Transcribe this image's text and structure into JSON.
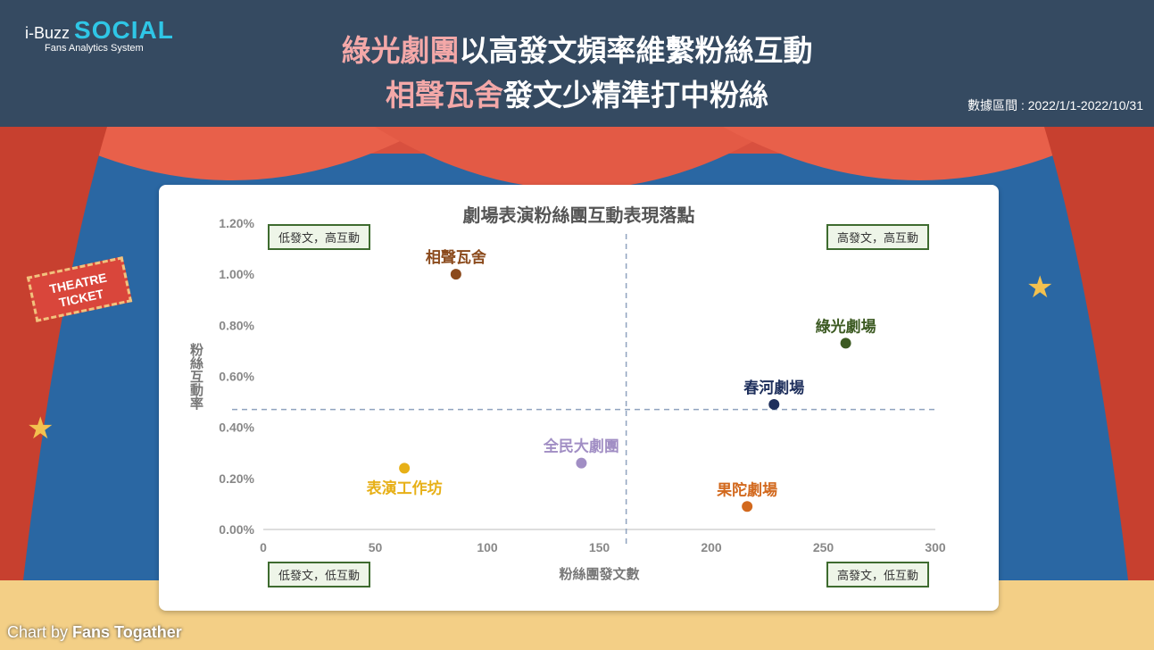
{
  "header": {
    "logo_text": "i-Buzz",
    "logo_brand": "SOCIAL",
    "logo_sub": "Fans Analytics System",
    "title_line1_highlight": "綠光劇團",
    "title_line1_rest": "以高發文頻率維繫粉絲互動",
    "title_line2_highlight": "相聲瓦舍",
    "title_line2_rest": "發文少精準打中粉絲",
    "period": "數據區間 : 2022/1/1-2022/10/31"
  },
  "decor": {
    "ticket_text": "THEATRE TICKET"
  },
  "quadrants": {
    "top_left": "低發文，高互動",
    "top_right": "高發文，高互動",
    "bottom_left": "低發文，低互動",
    "bottom_right": "高發文，低互動"
  },
  "footer": {
    "credit_prefix": "Chart by",
    "credit_name": "Fans Togather"
  },
  "chart_data": {
    "type": "scatter",
    "title": "劇場表演粉絲團互動表現落點",
    "xlabel": "粉絲團發文數",
    "ylabel": "粉絲互動率",
    "xlim": [
      0,
      300
    ],
    "ylim": [
      0,
      1.2
    ],
    "x_ticks": [
      0,
      50,
      100,
      150,
      200,
      250,
      300
    ],
    "y_ticks": [
      "0.00%",
      "0.20%",
      "0.40%",
      "0.60%",
      "0.80%",
      "1.00%",
      "1.20%"
    ],
    "y_tick_values": [
      0,
      0.2,
      0.4,
      0.6,
      0.8,
      1.0,
      1.2
    ],
    "x_divider": 162,
    "y_divider": 0.47,
    "grid": false,
    "points": [
      {
        "label": "相聲瓦舍",
        "x": 86,
        "y": 1.0,
        "color": "#8b4a1c",
        "label_pos": "above"
      },
      {
        "label": "綠光劇場",
        "x": 260,
        "y": 0.73,
        "color": "#3c5a22",
        "label_pos": "above"
      },
      {
        "label": "春河劇場",
        "x": 228,
        "y": 0.49,
        "color": "#1e2f5c",
        "label_pos": "above"
      },
      {
        "label": "全民大劇團",
        "x": 142,
        "y": 0.26,
        "color": "#a18ec4",
        "label_pos": "above"
      },
      {
        "label": "表演工作坊",
        "x": 63,
        "y": 0.24,
        "color": "#e7b017",
        "label_pos": "below"
      },
      {
        "label": "果陀劇場",
        "x": 216,
        "y": 0.09,
        "color": "#d2691e",
        "label_pos": "above"
      }
    ]
  }
}
